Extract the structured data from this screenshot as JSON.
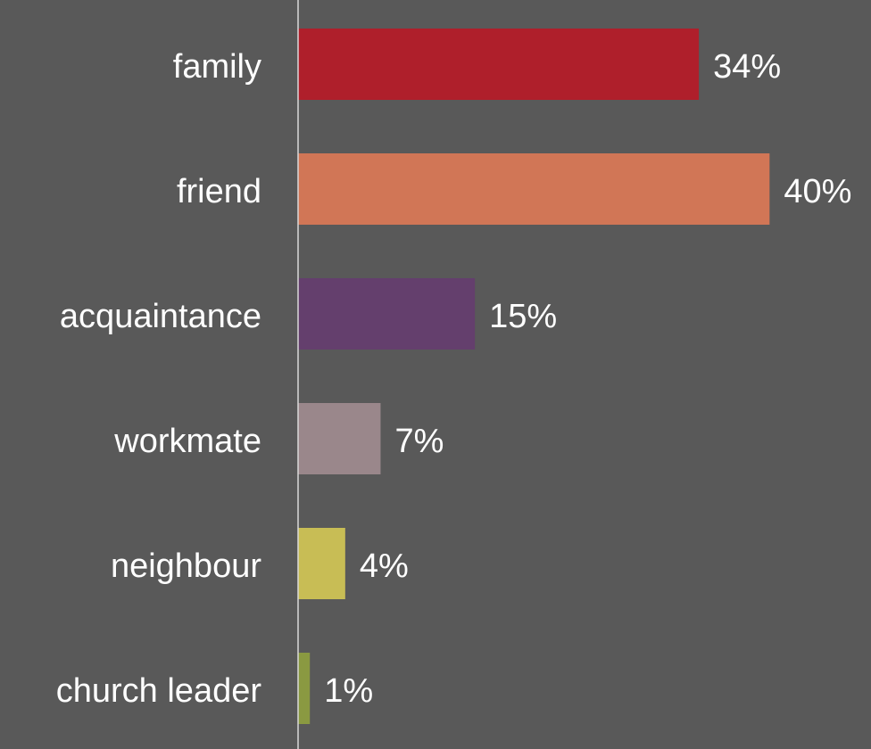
{
  "chart_data": {
    "type": "barh",
    "categories": [
      "family",
      "friend",
      "acquaintance",
      "workmate",
      "neighbour",
      "church leader"
    ],
    "values": [
      34,
      40,
      15,
      7,
      4,
      1
    ],
    "value_labels": [
      "34%",
      "40%",
      "15%",
      "7%",
      "4%",
      "1%"
    ],
    "colors": [
      "#af1f2b",
      "#d17656",
      "#643f6d",
      "#9a878b",
      "#c8bd55",
      "#8a9941"
    ],
    "xlim": [
      0,
      48
    ]
  }
}
